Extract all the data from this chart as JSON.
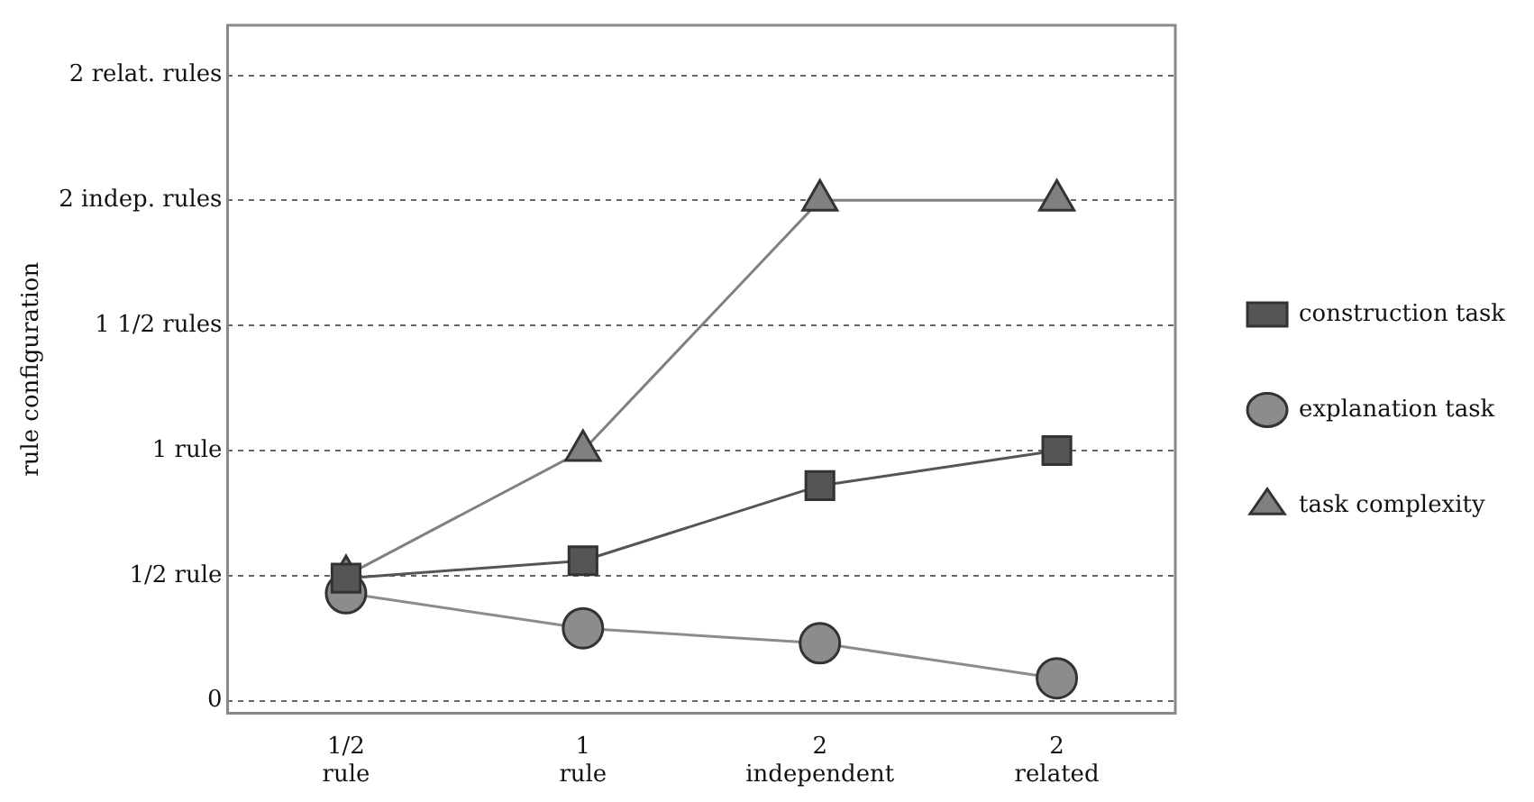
{
  "chart_data": {
    "type": "line",
    "ylabel": "rule configuration",
    "categories": [
      "1/2 rule",
      "1 rule",
      "2 independent",
      "2 related"
    ],
    "series": [
      {
        "name": "task complexity",
        "color": "#808080",
        "marker": "triangle",
        "values": [
          0.5,
          1,
          2,
          2
        ]
      },
      {
        "name": "explanation task",
        "color": "#8c8c8c",
        "marker": "circle",
        "values": [
          0.43,
          0.29,
          0.23,
          0.09
        ]
      },
      {
        "name": "construction task",
        "color": "#555555",
        "marker": "square",
        "values": [
          0.49,
          0.56,
          0.86,
          1
        ]
      }
    ],
    "ylim": [
      -0.05,
      2.7
    ],
    "yticks": [
      {
        "value": 0,
        "label": "0"
      },
      {
        "value": 0.5,
        "label": "1/2 rule"
      },
      {
        "value": 1,
        "label": "1 rule"
      },
      {
        "value": 1.5,
        "label": "1 1/2 rules"
      },
      {
        "value": 2,
        "label": "2 indep. rules"
      },
      {
        "value": 2.5,
        "label": "2 relat. rules"
      }
    ],
    "grid": "y",
    "legend": "right"
  }
}
